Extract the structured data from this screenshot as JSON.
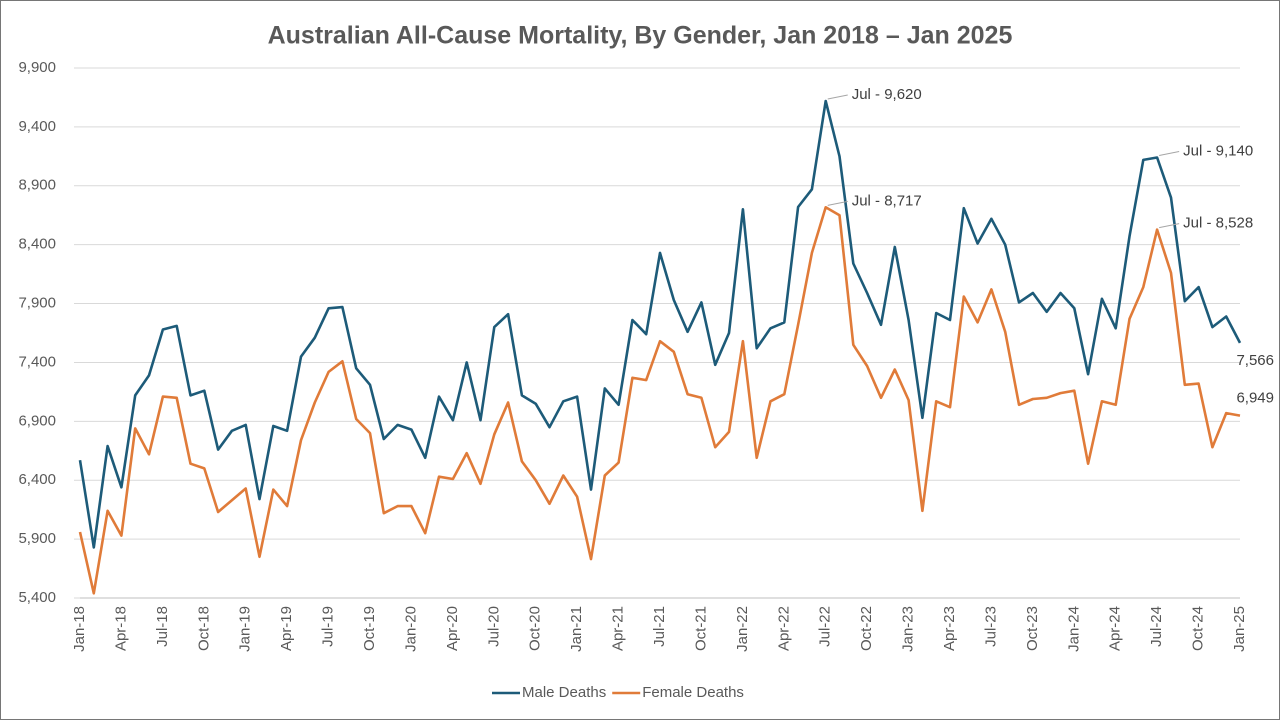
{
  "chart_data": {
    "type": "line",
    "title": "Australian All-Cause Mortality, By Gender, Jan 2018 – Jan 2025",
    "categories": [
      "Jan-18",
      null,
      null,
      "Apr-18",
      null,
      null,
      "Jul-18",
      null,
      null,
      "Oct-18",
      null,
      null,
      "Jan-19",
      null,
      null,
      "Apr-19",
      null,
      null,
      "Jul-19",
      null,
      null,
      "Oct-19",
      null,
      null,
      "Jan-20",
      null,
      null,
      "Apr-20",
      null,
      null,
      "Jul-20",
      null,
      null,
      "Oct-20",
      null,
      null,
      "Jan-21",
      null,
      null,
      "Apr-21",
      null,
      null,
      "Jul-21",
      null,
      null,
      "Oct-21",
      null,
      null,
      "Jan-22",
      null,
      null,
      "Apr-22",
      null,
      null,
      "Jul-22",
      null,
      null,
      "Oct-22",
      null,
      null,
      "Jan-23",
      null,
      null,
      "Apr-23",
      null,
      null,
      "Jul-23",
      null,
      null,
      "Oct-23",
      null,
      null,
      "Jan-24",
      null,
      null,
      "Apr-24",
      null,
      null,
      "Jul-24",
      null,
      null,
      "Oct-24",
      null,
      null,
      "Jan-25"
    ],
    "series": [
      {
        "name": "Male Deaths",
        "color": "#1d5b79",
        "values": [
          6570,
          5830,
          6690,
          6340,
          7120,
          7290,
          7680,
          7710,
          7120,
          7160,
          6660,
          6820,
          6870,
          6240,
          6860,
          6820,
          7450,
          7610,
          7860,
          7870,
          7350,
          7210,
          6750,
          6870,
          6830,
          6590,
          7110,
          6910,
          7400,
          6910,
          7700,
          7810,
          7120,
          7050,
          6850,
          7070,
          7110,
          6320,
          7180,
          7040,
          7760,
          7640,
          8330,
          7930,
          7660,
          7910,
          7380,
          7650,
          8700,
          7520,
          7690,
          7740,
          8720,
          8870,
          9620,
          9150,
          8240,
          7990,
          7720,
          8380,
          7760,
          6930,
          7820,
          7760,
          8710,
          8410,
          8620,
          8400,
          7910,
          7990,
          7830,
          7990,
          7860,
          7300,
          7940,
          7690,
          8470,
          9120,
          9140,
          8800,
          7920,
          8040,
          7700,
          7790,
          7566
        ],
        "value_labels": [
          null,
          null,
          null,
          null,
          null,
          null,
          null,
          null,
          null,
          null,
          null,
          null,
          null,
          null,
          null,
          null,
          null,
          null,
          null,
          null,
          null,
          null,
          null,
          null,
          null,
          null,
          null,
          null,
          null,
          null,
          null,
          null,
          null,
          null,
          null,
          null,
          null,
          null,
          null,
          null,
          null,
          null,
          null,
          null,
          null,
          null,
          null,
          null,
          null,
          null,
          null,
          null,
          null,
          null,
          "Jul - 9,620",
          null,
          null,
          null,
          null,
          null,
          null,
          null,
          null,
          null,
          null,
          null,
          null,
          null,
          null,
          null,
          null,
          null,
          null,
          null,
          null,
          null,
          null,
          null,
          "Jul - 9,140",
          null,
          null,
          null,
          null,
          null,
          "7,566"
        ]
      },
      {
        "name": "Female Deaths",
        "color": "#e07b39",
        "values": [
          5960,
          5440,
          6140,
          5930,
          6840,
          6620,
          7110,
          7100,
          6540,
          6500,
          6130,
          6230,
          6330,
          5750,
          6320,
          6180,
          6740,
          7060,
          7320,
          7410,
          6920,
          6800,
          6120,
          6180,
          6180,
          5950,
          6430,
          6410,
          6630,
          6370,
          6790,
          7060,
          6560,
          6400,
          6200,
          6440,
          6260,
          5730,
          6440,
          6550,
          7270,
          7250,
          7580,
          7490,
          7130,
          7100,
          6680,
          6810,
          7580,
          6590,
          7070,
          7130,
          7720,
          8330,
          8717,
          8650,
          7550,
          7370,
          7100,
          7340,
          7080,
          6140,
          7070,
          7020,
          7960,
          7740,
          8020,
          7660,
          7040,
          7090,
          7100,
          7140,
          7160,
          6540,
          7070,
          7040,
          7770,
          8040,
          8528,
          8160,
          7210,
          7220,
          6680,
          6970,
          6949
        ],
        "value_labels": [
          null,
          null,
          null,
          null,
          null,
          null,
          null,
          null,
          null,
          null,
          null,
          null,
          null,
          null,
          null,
          null,
          null,
          null,
          null,
          null,
          null,
          null,
          null,
          null,
          null,
          null,
          null,
          null,
          null,
          null,
          null,
          null,
          null,
          null,
          null,
          null,
          null,
          null,
          null,
          null,
          null,
          null,
          null,
          null,
          null,
          null,
          null,
          null,
          null,
          null,
          null,
          null,
          null,
          null,
          "Jul - 8,717",
          null,
          null,
          null,
          null,
          null,
          null,
          null,
          null,
          null,
          null,
          null,
          null,
          null,
          null,
          null,
          null,
          null,
          null,
          null,
          null,
          null,
          null,
          null,
          "Jul -  8,528",
          null,
          null,
          null,
          null,
          null,
          "6,949"
        ]
      }
    ],
    "ylim": [
      5400,
      9900
    ],
    "yticks": [
      {
        "value": 5400,
        "label": "5,400"
      },
      {
        "value": 5900,
        "label": "5,900"
      },
      {
        "value": 6400,
        "label": "6,400"
      },
      {
        "value": 6900,
        "label": "6,900"
      },
      {
        "value": 7400,
        "label": "7,400"
      },
      {
        "value": 7900,
        "label": "7,900"
      },
      {
        "value": 8400,
        "label": "8,400"
      },
      {
        "value": 8900,
        "label": "8,900"
      },
      {
        "value": 9400,
        "label": "9,400"
      },
      {
        "value": 9900,
        "label": "9,900"
      }
    ],
    "grid": true,
    "legend": "bottom"
  }
}
